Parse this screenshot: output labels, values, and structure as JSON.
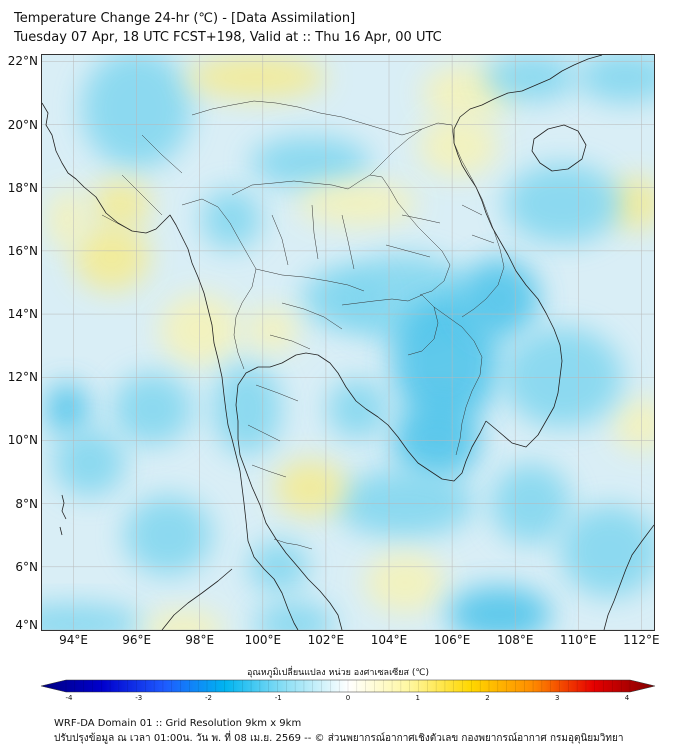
{
  "title": {
    "line1": "Temperature Change 24-hr (℃) - [Data Assimilation]",
    "line2": "Tuesday 07 Apr, 18 UTC FCST+198, Valid at :: Thu 16 Apr, 00 UTC"
  },
  "map": {
    "lat_labels": [
      "22°N",
      "20°N",
      "18°N",
      "16°N",
      "14°N",
      "12°N",
      "10°N",
      "8°N",
      "6°N",
      "4°N"
    ],
    "lon_labels": [
      "94°E",
      "96°E",
      "98°E",
      "100°E",
      "102°E",
      "104°E",
      "106°E",
      "108°E",
      "110°E",
      "112°E"
    ],
    "lat_range": [
      4,
      22.2
    ],
    "lon_range": [
      93,
      112.4
    ],
    "field_colors": {
      "base": "#d9eef6",
      "cool": "#7fd6ef",
      "cold": "#4cc3ea",
      "warm": "#f7f3b5",
      "hot": "#f6eb8c"
    }
  },
  "colorbar": {
    "title": "อุณหภูมิเปลี่ยนแปลง หน่วย องศาเซลเซียส (℃)",
    "ticks": [
      "-4",
      "-3",
      "-2",
      "-1",
      "0",
      "1",
      "2",
      "3",
      "4"
    ],
    "min": -4,
    "max": 4,
    "colors": [
      "#000080",
      "#0000cd",
      "#1e5aff",
      "#00b4f0",
      "#90e0f5",
      "#ffffff",
      "#fff7a0",
      "#ffd700",
      "#ff8c00",
      "#e60000",
      "#800000"
    ]
  },
  "footer": {
    "line1": "WRF-DA Domain 01 :: Grid Resolution 9km x 9km",
    "line2": "ปรับปรุงข้อมูล ณ เวลา 01:00น. วัน พ. ที่ 08 เม.ย. 2569 -- © ส่วนพยากรณ์อากาศเชิงตัวเลข กองพยากรณ์อากาศ กรมอุตุนิยมวิทยา"
  }
}
